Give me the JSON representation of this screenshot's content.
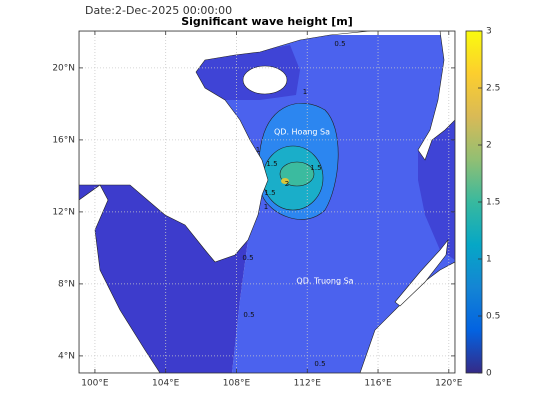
{
  "chart_data": {
    "type": "map",
    "date": "Date:2-Dec-2025 00:00:00",
    "title": "Significant wave height [m]",
    "xlim": [
      99.1,
      120.35
    ],
    "ylim": [
      3.05,
      22.05
    ],
    "xticks": [
      {
        "value": 100,
        "label": "100°E"
      },
      {
        "value": 104,
        "label": "104°E"
      },
      {
        "value": 108,
        "label": "108°E"
      },
      {
        "value": 112,
        "label": "112°E"
      },
      {
        "value": 116,
        "label": "116°E"
      },
      {
        "value": 120,
        "label": "120°E"
      }
    ],
    "yticks": [
      {
        "value": 4,
        "label": "4°N"
      },
      {
        "value": 8,
        "label": "8°N"
      },
      {
        "value": 12,
        "label": "12°N"
      },
      {
        "value": 16,
        "label": "16°N"
      },
      {
        "value": 20,
        "label": "20°N"
      }
    ],
    "grid": true,
    "clim": [
      0,
      3
    ],
    "cticks": [
      0,
      0.5,
      1,
      1.5,
      2,
      2.5,
      3
    ],
    "colormap": [
      "#352a87",
      "#0363e1",
      "#1485d4",
      "#06a7c6",
      "#38b99e",
      "#92bf73",
      "#d9ba56",
      "#fcce2e",
      "#f9fb0e"
    ],
    "place_labels": [
      "QD. Hoang Sa",
      "QD. Truong Sa"
    ],
    "contour_labels": [
      1.5,
      1.5,
      1.5,
      2,
      1,
      1,
      1,
      0.5,
      0.5,
      0.5,
      0.5
    ]
  }
}
